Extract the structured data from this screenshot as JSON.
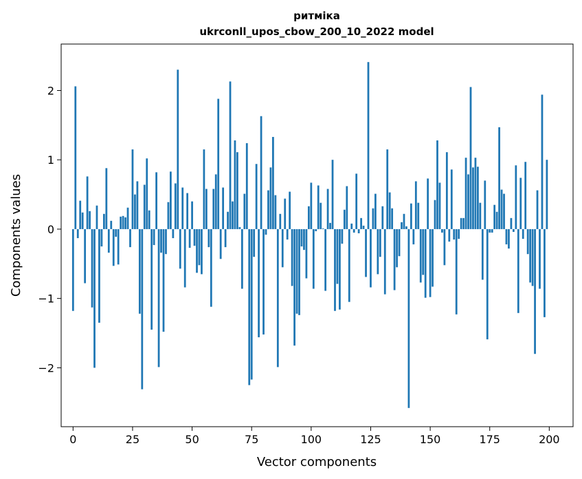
{
  "chart_data": {
    "type": "bar",
    "title": "ритміка",
    "subtitle": "ukrconll_upos_cbow_200_10_2022 model",
    "xlabel": "Vector components",
    "ylabel": "Components values",
    "xlim": [
      -5,
      210
    ],
    "ylim": [
      -2.85,
      2.67
    ],
    "x_ticks": [
      0,
      25,
      50,
      75,
      100,
      125,
      150,
      175,
      200
    ],
    "y_ticks": [
      -2,
      -1,
      0,
      1,
      2
    ],
    "y_tick_labels": [
      "−2",
      "−1",
      "0",
      "1",
      "2"
    ],
    "grid": false,
    "bar_color": "#1f77b4",
    "values": [
      -1.18,
      2.06,
      -0.13,
      0.41,
      0.24,
      -0.78,
      0.76,
      0.26,
      -1.13,
      -2.0,
      0.34,
      -1.35,
      -0.25,
      0.22,
      0.88,
      -0.34,
      0.12,
      -0.53,
      -0.11,
      -0.51,
      0.18,
      0.19,
      0.17,
      0.31,
      -0.26,
      1.15,
      0.5,
      0.69,
      -1.22,
      -2.31,
      0.64,
      1.02,
      0.27,
      -1.45,
      -0.23,
      0.82,
      -1.99,
      -0.34,
      -1.48,
      -0.36,
      0.39,
      0.83,
      -0.13,
      0.66,
      2.3,
      -0.57,
      0.6,
      -0.84,
      0.52,
      -0.27,
      0.4,
      -0.24,
      -0.63,
      -0.52,
      -0.65,
      1.15,
      0.58,
      -0.26,
      -1.12,
      0.58,
      0.79,
      1.88,
      -0.43,
      0.6,
      -0.26,
      0.25,
      2.13,
      0.4,
      1.28,
      1.11,
      0.03,
      -0.86,
      0.51,
      1.24,
      -2.25,
      -2.17,
      -0.4,
      0.94,
      -1.56,
      1.63,
      -1.52,
      -0.08,
      0.56,
      0.89,
      1.33,
      0.49,
      -1.99,
      0.22,
      -0.55,
      0.44,
      -0.15,
      0.54,
      -0.82,
      -1.68,
      -1.22,
      -1.24,
      -0.25,
      -0.3,
      -0.71,
      0.33,
      0.67,
      -0.86,
      -0.03,
      0.63,
      0.38,
      0.01,
      -0.89,
      0.58,
      0.09,
      1.0,
      -1.18,
      -0.79,
      -1.16,
      -0.21,
      0.28,
      0.62,
      -1.05,
      0.08,
      -0.05,
      0.8,
      -0.06,
      0.16,
      0.05,
      -0.69,
      2.41,
      -0.84,
      0.3,
      0.51,
      -0.65,
      -0.4,
      0.33,
      -0.94,
      1.15,
      0.53,
      0.3,
      -0.88,
      -0.55,
      -0.39,
      0.1,
      0.22,
      0.04,
      -2.58,
      0.37,
      -0.22,
      0.69,
      0.38,
      -0.77,
      -0.66,
      -0.99,
      0.73,
      -0.98,
      -0.83,
      0.42,
      1.28,
      0.67,
      -0.05,
      -0.52,
      1.11,
      -0.18,
      0.86,
      -0.15,
      -1.23,
      -0.14,
      0.16,
      0.16,
      1.03,
      0.79,
      2.05,
      0.89,
      1.03,
      0.9,
      0.38,
      -0.73,
      0.7,
      -1.59,
      -0.05,
      -0.05,
      0.35,
      0.25,
      1.47,
      0.57,
      0.51,
      -0.22,
      -0.28,
      0.16,
      -0.04,
      0.92,
      -1.21,
      0.74,
      -0.14,
      0.97,
      -0.36,
      -0.77,
      -0.82,
      -1.8,
      0.56,
      -0.86,
      1.94,
      -1.27,
      1.0
    ]
  }
}
